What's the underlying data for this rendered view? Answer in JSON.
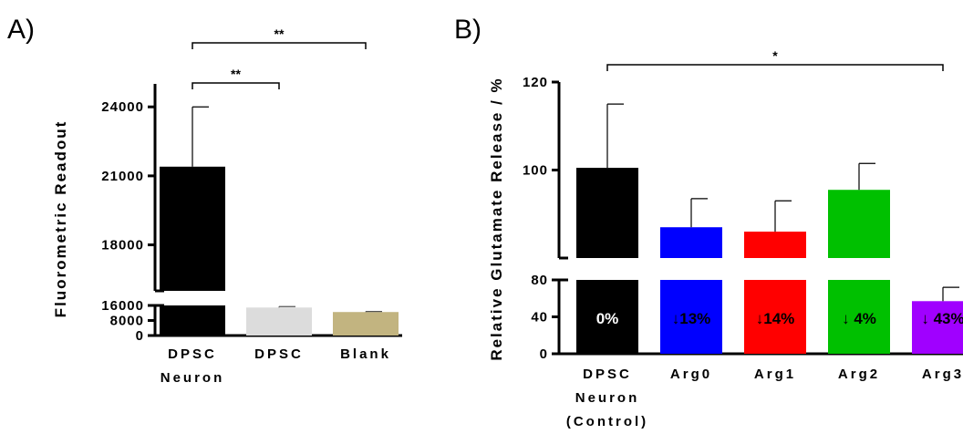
{
  "chart_data": [
    {
      "type": "bar",
      "panel_label": "A)",
      "ylabel": "Fluorometric Readout",
      "categories": [
        [
          "DPSC",
          "Neuron"
        ],
        [
          "DPSC"
        ],
        [
          "Blank"
        ]
      ],
      "values": [
        21400,
        14900,
        12500
      ],
      "errors": [
        2600,
        500,
        300
      ],
      "colors": [
        "#000000",
        "#dcdcdc",
        "#c2b480"
      ],
      "error_colors": [
        "#000000",
        "#555555",
        "#555555"
      ],
      "ylim_upper": [
        16000,
        25000
      ],
      "yticks_upper": [
        18000,
        21000,
        24000
      ],
      "ylim_lower": [
        0,
        16000
      ],
      "yticks_lower": [
        0,
        8000,
        16000
      ],
      "tick_labels_upper": [
        "18000",
        "21000",
        "24000"
      ],
      "tick_labels_lower": [
        "0",
        "8000",
        "16000"
      ],
      "significance": [
        {
          "from": 0,
          "to": 1,
          "label": "**"
        },
        {
          "from": 0,
          "to": 2,
          "label": "**"
        }
      ]
    },
    {
      "type": "bar",
      "panel_label": "B)",
      "ylabel": "Relative Glutamate Release / %",
      "categories": [
        [
          "DPSC",
          "Neuron",
          "(Control)"
        ],
        [
          "Arg0"
        ],
        [
          "Arg1"
        ],
        [
          "Arg2"
        ],
        [
          "Arg3"
        ]
      ],
      "values": [
        100.5,
        87,
        86,
        95.5,
        57
      ],
      "errors": [
        14.5,
        6.5,
        7,
        6,
        15
      ],
      "colors": [
        "#000000",
        "#0000ff",
        "#ff0000",
        "#00c000",
        "#a000ff"
      ],
      "bar_labels": [
        "0%",
        "↓13%",
        "↓14%",
        "↓ 4%",
        "↓ 43%"
      ],
      "bar_label_colors": [
        "#ffffff",
        "#000000",
        "#000000",
        "#000000",
        "#000000"
      ],
      "ylim_upper": [
        80,
        120
      ],
      "yticks_upper": [
        100,
        120
      ],
      "ylim_lower": [
        0,
        80
      ],
      "yticks_lower": [
        0,
        40,
        80
      ],
      "tick_labels_upper": [
        "100",
        "120"
      ],
      "tick_labels_lower": [
        "0",
        "40",
        "80"
      ],
      "significance": [
        {
          "from": 0,
          "to": 4,
          "label": "*"
        }
      ]
    }
  ]
}
